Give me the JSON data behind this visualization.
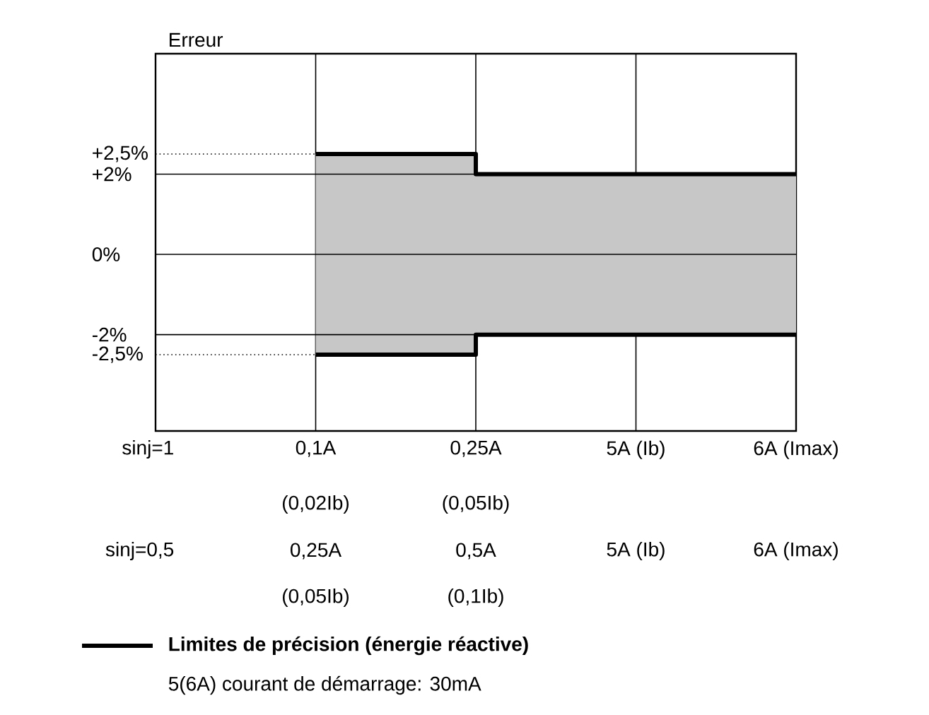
{
  "chart_data": {
    "type": "step",
    "ylabel": "Erreur",
    "categories": [
      null,
      "0,1A",
      "0,25A",
      "5A (Ib)",
      "6A (Imax)"
    ],
    "series": [
      {
        "name": "Limites de précision (énergie réactive)",
        "color": "#000000",
        "marker": "none",
        "values": [
          null,
          2.5,
          2,
          2,
          2
        ],
        "lower": [
          null,
          -2.5,
          -2,
          -2,
          -2
        ],
        "upper": [
          null,
          2.5,
          2,
          2,
          2
        ]
      },
      {
        "color": "#000000",
        "marker": "none",
        "values": [
          null,
          -2.5,
          -2,
          -2,
          -2
        ]
      },
      {
        "type": "line",
        "color": "#000000",
        "marker": "none",
        "line_style": "dotted",
        "values": [
          2.5,
          2.5,
          null,
          null,
          null
        ]
      },
      {
        "type": "line",
        "color": "#000000",
        "marker": "none",
        "line_style": "dotted",
        "values": [
          -2.5,
          -2.5,
          null,
          null,
          null
        ]
      }
    ],
    "ylim": [
      -4.4,
      5
    ],
    "yticks": [
      {
        "value": 2.5,
        "label": "+2,5%"
      },
      {
        "value": 2,
        "label": "+2%"
      },
      {
        "value": 0,
        "label": "0%"
      },
      {
        "value": -2,
        "label": "-2%"
      },
      {
        "value": -2.5,
        "label": "-2,5%"
      }
    ],
    "grid": true,
    "legend": "bottom",
    "annotations": [
      "sinj=1",
      "(0,02Ib)",
      "(0,05Ib)",
      "sinj=0,5",
      "0,25A",
      "0,5A",
      "5A (Ib)",
      "6A (Imax)",
      "(0,05Ib)",
      "(0,1Ib)",
      "5(6A)  courant de démarrage: 30mA"
    ]
  }
}
